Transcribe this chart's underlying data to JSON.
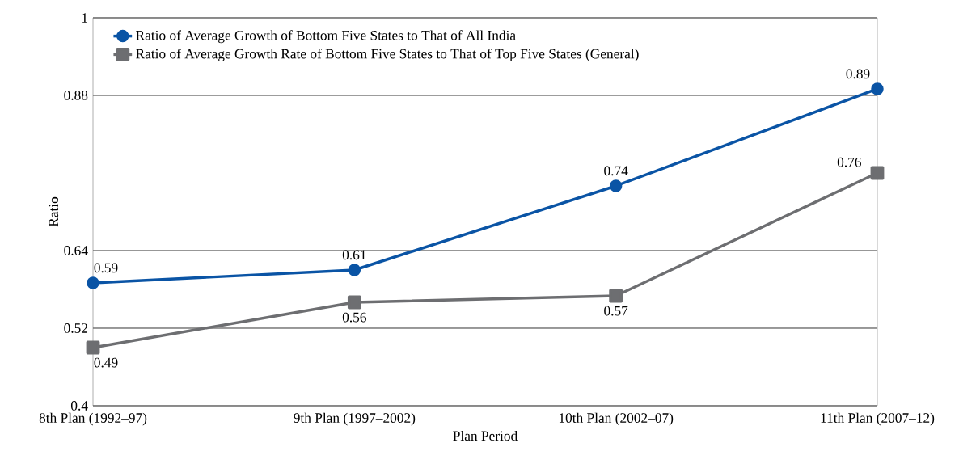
{
  "chart_data": {
    "type": "line",
    "xlabel": "Plan Period",
    "ylabel": "Ratio",
    "categories": [
      "8th Plan (1992–97)",
      "9th Plan (1997–2002)",
      "10th Plan (2002–07)",
      "11th Plan (2007–12)"
    ],
    "series": [
      {
        "name": "Ratio of Average Growth of Bottom Five States to That of All India",
        "color": "#0a54a5",
        "marker": "circle",
        "values": [
          0.59,
          0.61,
          0.74,
          0.89
        ]
      },
      {
        "name": "Ratio of Average Growth Rate of Bottom Five States to That of Top Five States (General)",
        "color": "#6d6e71",
        "marker": "square",
        "values": [
          0.49,
          0.56,
          0.57,
          0.76
        ]
      }
    ],
    "ylim": [
      0.4,
      1
    ],
    "yticks": [
      0.4,
      0.52,
      0.64,
      0.88,
      1
    ],
    "grid": "y",
    "legend": "top left",
    "data_labels": true,
    "line_style": "solid"
  }
}
